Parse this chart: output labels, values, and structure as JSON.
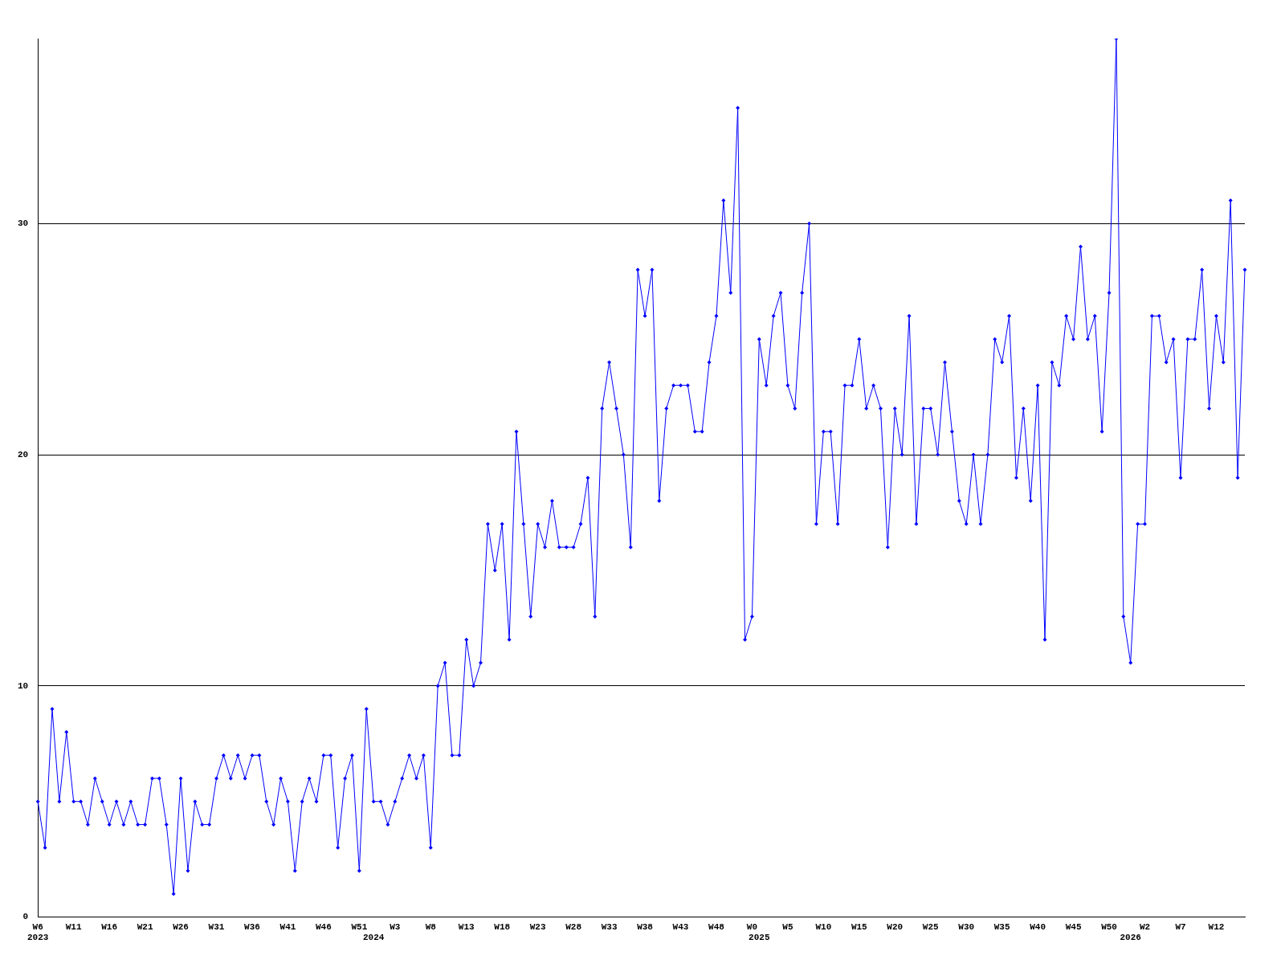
{
  "chart_data": {
    "type": "line",
    "categories": [
      "W6\n2023",
      null,
      null,
      null,
      null,
      "W11",
      null,
      null,
      null,
      null,
      "W16",
      null,
      null,
      null,
      null,
      "W21",
      null,
      null,
      null,
      null,
      "W26",
      null,
      null,
      null,
      null,
      "W31",
      null,
      null,
      null,
      null,
      "W36",
      null,
      null,
      null,
      null,
      "W41",
      null,
      null,
      null,
      null,
      "W46",
      null,
      null,
      null,
      null,
      "W51",
      null,
      "\n2024",
      null,
      null,
      "W3",
      null,
      null,
      null,
      null,
      "W8",
      null,
      null,
      null,
      null,
      "W13",
      null,
      null,
      null,
      null,
      "W18",
      null,
      null,
      null,
      null,
      "W23",
      null,
      null,
      null,
      null,
      "W28",
      null,
      null,
      null,
      null,
      "W33",
      null,
      null,
      null,
      null,
      "W38",
      null,
      null,
      null,
      null,
      "W43",
      null,
      null,
      null,
      null,
      "W48",
      null,
      null,
      null,
      null,
      "W0",
      "\n2025",
      null,
      null,
      null,
      "W5",
      null,
      null,
      null,
      null,
      "W10",
      null,
      null,
      null,
      null,
      "W15",
      null,
      null,
      null,
      null,
      "W20",
      null,
      null,
      null,
      null,
      "W25",
      null,
      null,
      null,
      null,
      "W30",
      null,
      null,
      null,
      null,
      "W35",
      null,
      null,
      null,
      null,
      "W40",
      null,
      null,
      null,
      null,
      "W45",
      null,
      null,
      null,
      null,
      "W50",
      null,
      null,
      "\n2026",
      null,
      "W2",
      null,
      null,
      null,
      null,
      "W7",
      null,
      null,
      null,
      null,
      "W12",
      null,
      null,
      null,
      null
    ],
    "series": [
      {
        "color": "#0000ff",
        "values": [
          5,
          3,
          9,
          5,
          8,
          5,
          5,
          4,
          6,
          5,
          4,
          5,
          4,
          5,
          4,
          4,
          6,
          6,
          4,
          1,
          6,
          2,
          5,
          4,
          4,
          6,
          7,
          6,
          7,
          6,
          7,
          7,
          5,
          4,
          6,
          5,
          2,
          5,
          6,
          5,
          7,
          7,
          3,
          6,
          7,
          2,
          9,
          5,
          5,
          4,
          5,
          6,
          7,
          6,
          7,
          3,
          10,
          11,
          7,
          7,
          12,
          10,
          11,
          17,
          15,
          17,
          12,
          21,
          17,
          13,
          17,
          16,
          18,
          16,
          16,
          16,
          17,
          19,
          13,
          22,
          24,
          22,
          20,
          16,
          28,
          26,
          28,
          18,
          22,
          23,
          23,
          23,
          21,
          21,
          24,
          26,
          31,
          27,
          35,
          12,
          13,
          25,
          23,
          26,
          27,
          23,
          22,
          27,
          30,
          17,
          21,
          21,
          17,
          23,
          23,
          25,
          22,
          23,
          22,
          16,
          22,
          20,
          26,
          17,
          22,
          22,
          20,
          24,
          21,
          18,
          17,
          20,
          17,
          20,
          25,
          24,
          26,
          19,
          22,
          18,
          23,
          12,
          24,
          23,
          26,
          25,
          29,
          25,
          26,
          21,
          27,
          38,
          13,
          11,
          17,
          17,
          26,
          26,
          24,
          25,
          19,
          25,
          25,
          28,
          22,
          26,
          24,
          31,
          19,
          28
        ]
      }
    ],
    "ylim": [
      0,
      38
    ],
    "yticks": [
      0,
      10,
      20,
      30
    ],
    "grid": "y",
    "legend": false,
    "marker": "diamond",
    "line_style": "solid"
  }
}
